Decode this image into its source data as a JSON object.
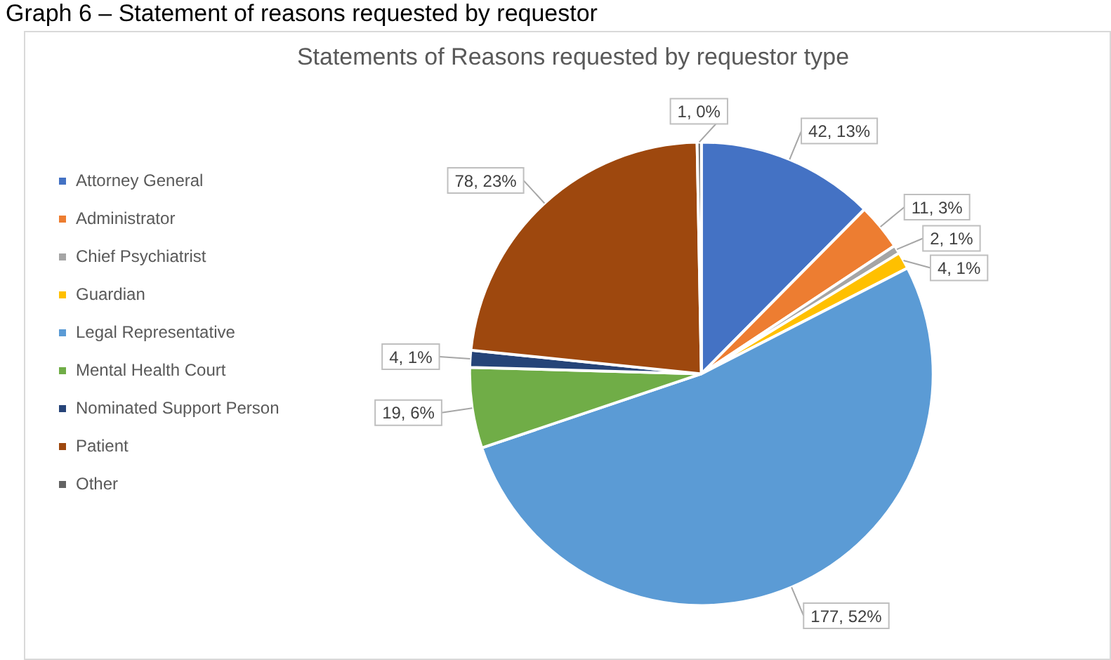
{
  "chart_data": {
    "type": "pie",
    "title": "Statements of Reasons requested by requestor type",
    "annotations": [
      "Graph 6 – Statement of reasons requested by requestor"
    ],
    "categories": [
      "Attorney General",
      "Administrator",
      "Chief Psychiatrist",
      "Guardian",
      "Legal Representative",
      "Mental Health Court",
      "Nominated Support Person",
      "Patient",
      "Other"
    ],
    "values": [
      42,
      11,
      2,
      4,
      177,
      19,
      4,
      78,
      1
    ],
    "colors": [
      "#4472c4",
      "#ed7d31",
      "#a5a5a5",
      "#ffc000",
      "#5b9bd5",
      "#70ad47",
      "#264478",
      "#9e480e",
      "#636363"
    ],
    "value_labels": [
      "42, 13%",
      "11, 3%",
      "2, 1%",
      "4, 1%",
      "177, 52%",
      "19, 6%",
      "4, 1%",
      "78, 23%",
      "1, 0%"
    ],
    "legend": "left"
  }
}
